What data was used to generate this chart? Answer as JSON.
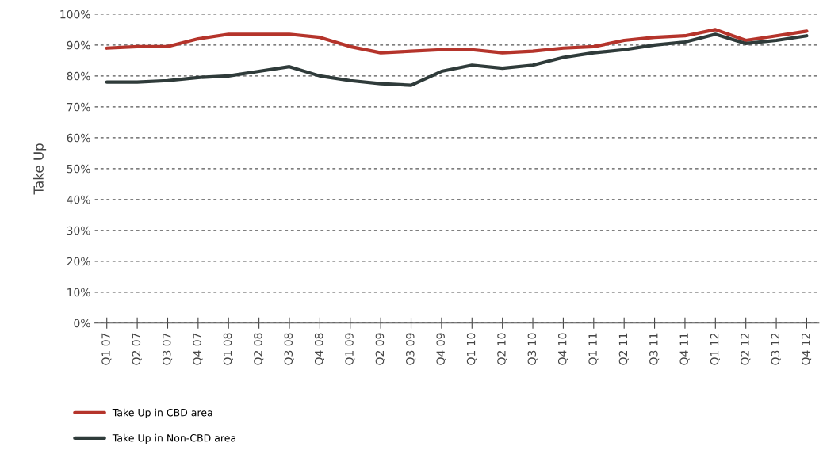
{
  "chart_data": {
    "type": "line",
    "ylabel": "Take Up",
    "categories": [
      "Q1 07",
      "Q2 07",
      "Q3 07",
      "Q4 07",
      "Q1 08",
      "Q2 08",
      "Q3 08",
      "Q4 08",
      "Q1 09",
      "Q2 09",
      "Q3 09",
      "Q4 09",
      "Q1 10",
      "Q2 10",
      "Q3 10",
      "Q4 10",
      "Q1 11",
      "Q2 11",
      "Q3 11",
      "Q4 11",
      "Q1 12",
      "Q2 12",
      "Q3 12",
      "Q4 12"
    ],
    "series": [
      {
        "name": "Take Up in CBD area",
        "color": "#b5342b",
        "values": [
          89,
          89.5,
          89.5,
          92,
          93.5,
          93.5,
          93.5,
          92.5,
          89.5,
          87.5,
          88,
          88.5,
          88.5,
          87.5,
          88,
          89,
          89.5,
          91.5,
          92.5,
          93,
          95,
          91.5,
          93,
          94.5
        ]
      },
      {
        "name": "Take Up in Non-CBD area",
        "color": "#2f3b3a",
        "values": [
          78,
          78,
          78.5,
          79.5,
          80,
          81.5,
          83,
          80,
          78.5,
          77.5,
          77,
          81.5,
          83.5,
          82.5,
          83.5,
          86,
          87.5,
          88.5,
          90,
          91,
          93.5,
          90.5,
          91.5,
          93
        ]
      }
    ],
    "ylim": [
      0,
      100
    ],
    "yticks": [
      {
        "value": 0,
        "label": "0%"
      },
      {
        "value": 10,
        "label": "10%"
      },
      {
        "value": 20,
        "label": "20%"
      },
      {
        "value": 30,
        "label": "30%"
      },
      {
        "value": 40,
        "label": "40%"
      },
      {
        "value": 50,
        "label": "50%"
      },
      {
        "value": 60,
        "label": "60%"
      },
      {
        "value": 70,
        "label": "70%"
      },
      {
        "value": 80,
        "label": "80%"
      },
      {
        "value": 90,
        "label": "90%"
      },
      {
        "value": 100,
        "label": "100%"
      }
    ],
    "grid": "y",
    "legend": "bottom left",
    "line_style": "solid",
    "marker": "none"
  }
}
